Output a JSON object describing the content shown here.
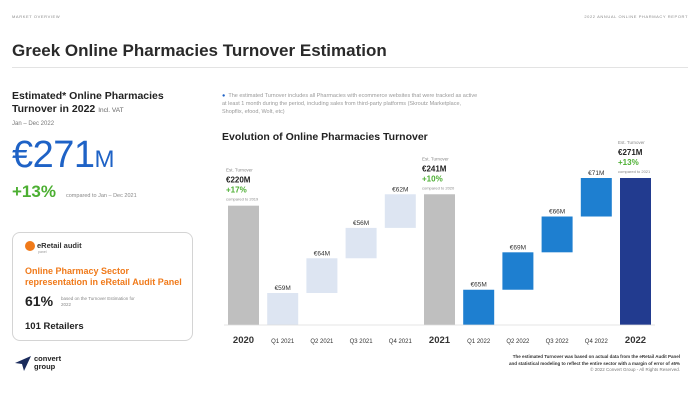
{
  "header": {
    "left": "MARKET OVERVIEW",
    "right": "2022 ANNUAL ONLINE PHARMACY REPORT",
    "title": "Greek Online Pharmacies Turnover Estimation"
  },
  "summary": {
    "heading": "Estimated* Online Pharmacies Turnover in 2022",
    "vat": "Incl. VAT",
    "period": "Jan – Dec 2022",
    "big_value": "€271",
    "big_unit": "M",
    "growth": "+13%",
    "growth_note": "compared to Jan – Dec 2021"
  },
  "panel": {
    "logo": "eRetail audit",
    "logo_sub": "panel",
    "title": "Online Pharmacy Sector representation in eRetail Audit Panel",
    "pct": "61%",
    "pct_note": "based on the Turnover Estimation for 2022",
    "retailers": "101 Retailers"
  },
  "brand": {
    "line1": "convert",
    "line2": "group"
  },
  "note": "The estimated Turnover includes all Pharmacies with ecommerce websites that were tracked as active at least 1 month during the period, including sales from third-party platforms (Skroutz Marketplace, Shopflix, efood, Wolt, etc)",
  "footnote": {
    "line1": "The estimated Turnover was based on actual data from the eRetail Audit Panel",
    "line2": "and statistical modeling to reflect the entire sector with a margin of error of ±5%",
    "copy": "© 2022 Convert Group - All Rights Reserved."
  },
  "chart_data": {
    "type": "bar",
    "title": "Evolution of Online Pharmacies Turnover",
    "ylim": [
      0,
      290
    ],
    "categories": [
      "2020",
      "Q1 2021",
      "Q2 2021",
      "Q3 2021",
      "Q4 2021",
      "2021",
      "Q1 2022",
      "Q2 2022",
      "Q3 2022",
      "Q4 2022",
      "2022"
    ],
    "bars": [
      {
        "label": "€220M",
        "base": 0,
        "value": 220,
        "kind": "total",
        "color": "#bfbfbf",
        "annotation": {
          "title": "Est. Turnover",
          "growth": "+17%",
          "note": "compared to 2019"
        }
      },
      {
        "label": "€59M",
        "base": 0,
        "value": 59,
        "kind": "step",
        "color": "#dde5f2"
      },
      {
        "label": "€64M",
        "base": 59,
        "value": 64,
        "kind": "step",
        "color": "#dde5f2"
      },
      {
        "label": "€56M",
        "base": 123,
        "value": 56,
        "kind": "step",
        "color": "#dde5f2"
      },
      {
        "label": "€62M",
        "base": 179,
        "value": 62,
        "kind": "step",
        "color": "#dde5f2"
      },
      {
        "label": "€241M",
        "base": 0,
        "value": 241,
        "kind": "total",
        "color": "#bfbfbf",
        "annotation": {
          "title": "Est. Turnover",
          "growth": "+10%",
          "note": "compared to 2020"
        }
      },
      {
        "label": "€65M",
        "base": 0,
        "value": 65,
        "kind": "step",
        "color": "#1e7fd0"
      },
      {
        "label": "€69M",
        "base": 65,
        "value": 69,
        "kind": "step",
        "color": "#1e7fd0"
      },
      {
        "label": "€66M",
        "base": 134,
        "value": 66,
        "kind": "step",
        "color": "#1e7fd0"
      },
      {
        "label": "€71M",
        "base": 200,
        "value": 71,
        "kind": "step",
        "color": "#1e7fd0"
      },
      {
        "label": "€271M",
        "base": 0,
        "value": 271,
        "kind": "total",
        "color": "#223b8f",
        "annotation": {
          "title": "Est. Turnover",
          "growth": "+13%",
          "note": "compared to 2021"
        }
      }
    ],
    "grid": false,
    "legend": "none"
  }
}
